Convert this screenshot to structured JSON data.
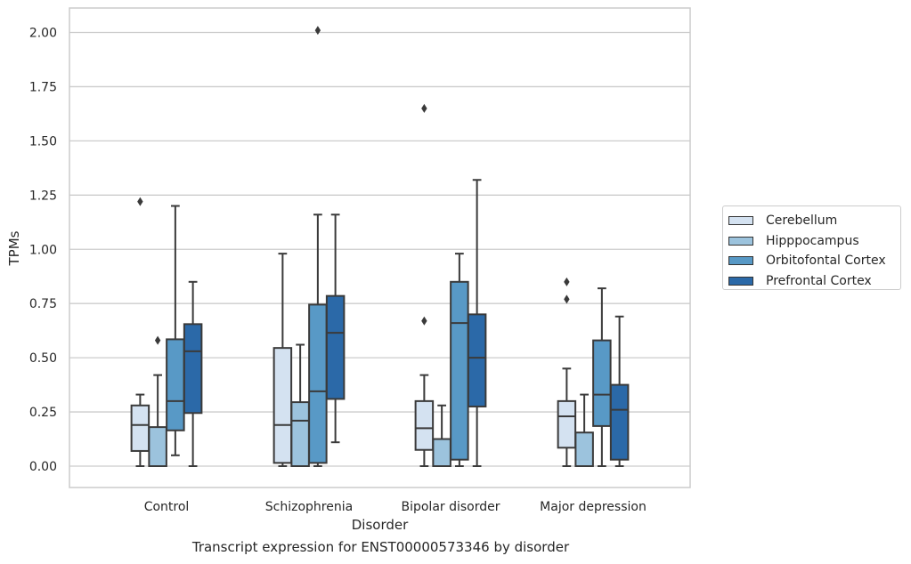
{
  "chart_data": {
    "type": "boxplot",
    "caption": "Transcript expression for ENST00000573346 by disorder",
    "xlabel": "Disorder",
    "ylabel": "TPMs",
    "ylim": [
      -0.1,
      2.11
    ],
    "yticks": [
      "0.00",
      "0.25",
      "0.50",
      "0.75",
      "1.00",
      "1.25",
      "1.50",
      "1.75",
      "2.00"
    ],
    "categories": [
      "Control",
      "Schizophrenia",
      "Bipolar disorder",
      "Major depression"
    ],
    "grid": "horizontal",
    "legend_position": "right",
    "series": [
      {
        "name": "Cerebellum",
        "color": "#d4e2f1",
        "boxes": [
          {
            "whislo": 0.0,
            "q1": 0.07,
            "med": 0.19,
            "q3": 0.28,
            "whishi": 0.33,
            "fliers": [
              1.22
            ]
          },
          {
            "whislo": 0.0,
            "q1": 0.015,
            "med": 0.19,
            "q3": 0.545,
            "whishi": 0.98,
            "fliers": []
          },
          {
            "whislo": 0.0,
            "q1": 0.075,
            "med": 0.175,
            "q3": 0.3,
            "whishi": 0.42,
            "fliers": [
              0.67,
              1.65
            ]
          },
          {
            "whislo": 0.0,
            "q1": 0.085,
            "med": 0.23,
            "q3": 0.3,
            "whishi": 0.45,
            "fliers": [
              0.77,
              0.85
            ]
          }
        ]
      },
      {
        "name": "Hipppocampus",
        "color": "#9cc3dd",
        "boxes": [
          {
            "whislo": 0.0,
            "q1": 0.0,
            "med": 0.0,
            "q3": 0.18,
            "whishi": 0.42,
            "fliers": [
              0.58
            ]
          },
          {
            "whislo": 0.0,
            "q1": 0.0,
            "med": 0.21,
            "q3": 0.295,
            "whishi": 0.56,
            "fliers": []
          },
          {
            "whislo": 0.0,
            "q1": 0.0,
            "med": 0.0,
            "q3": 0.125,
            "whishi": 0.28,
            "fliers": []
          },
          {
            "whislo": 0.0,
            "q1": 0.0,
            "med": 0.0,
            "q3": 0.155,
            "whishi": 0.33,
            "fliers": []
          }
        ]
      },
      {
        "name": "Orbitofontal Cortex",
        "color": "#5899c6",
        "boxes": [
          {
            "whislo": 0.05,
            "q1": 0.165,
            "med": 0.3,
            "q3": 0.585,
            "whishi": 1.2,
            "fliers": []
          },
          {
            "whislo": 0.0,
            "q1": 0.015,
            "med": 0.345,
            "q3": 0.745,
            "whishi": 1.16,
            "fliers": [
              2.01
            ]
          },
          {
            "whislo": 0.0,
            "q1": 0.03,
            "med": 0.66,
            "q3": 0.85,
            "whishi": 0.98,
            "fliers": []
          },
          {
            "whislo": 0.0,
            "q1": 0.185,
            "med": 0.33,
            "q3": 0.58,
            "whishi": 0.82,
            "fliers": []
          }
        ]
      },
      {
        "name": "Prefrontal Cortex",
        "color": "#2b69a8",
        "boxes": [
          {
            "whislo": 0.0,
            "q1": 0.245,
            "med": 0.53,
            "q3": 0.655,
            "whishi": 0.85,
            "fliers": []
          },
          {
            "whislo": 0.11,
            "q1": 0.31,
            "med": 0.615,
            "q3": 0.785,
            "whishi": 1.16,
            "fliers": []
          },
          {
            "whislo": 0.0,
            "q1": 0.275,
            "med": 0.5,
            "q3": 0.7,
            "whishi": 1.32,
            "fliers": []
          },
          {
            "whislo": 0.0,
            "q1": 0.03,
            "med": 0.26,
            "q3": 0.375,
            "whishi": 0.69,
            "fliers": []
          }
        ]
      }
    ]
  }
}
